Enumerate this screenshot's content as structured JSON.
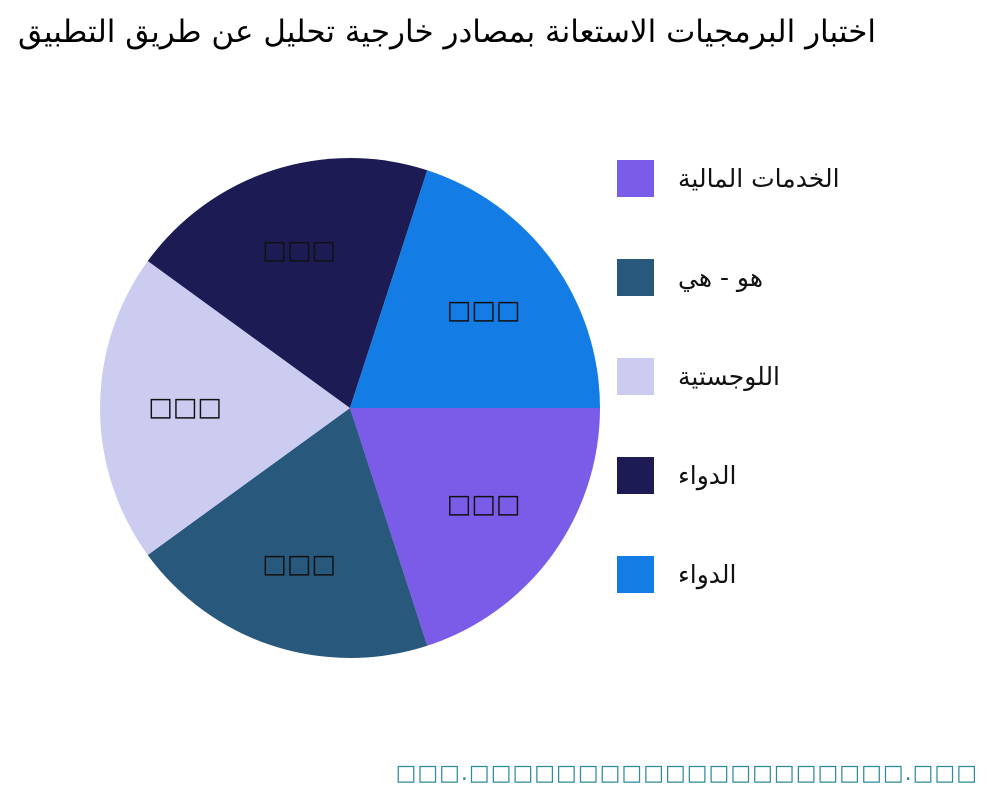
{
  "title": "اختبار البرمجيات الاستعانة بمصادر خارجية تحليل عن طريق التطبيق",
  "watermark_text": "□□□.□□□□□□□□□□□□□□□□□□□□.□□□",
  "chart_data": {
    "type": "pie",
    "title": "اختبار البرمجيات الاستعانة بمصادر خارجية تحليل عن طريق التطبيق",
    "labels": [
      "الخدمات المالية",
      "هو - هي",
      "اللوجستية",
      "الدواء",
      "الدواء"
    ],
    "values": [
      20,
      20,
      20,
      20,
      20
    ],
    "slice_value_labels": [
      "□□□",
      "□□□",
      "□□□",
      "□□□",
      "□□□"
    ],
    "colors": [
      "#7A5CE8",
      "#28587C",
      "#CCCCF0",
      "#1D1B53",
      "#147CE5"
    ],
    "start_angle_deg": 0,
    "direction": "clockwise",
    "legend_position": "right",
    "grid": false
  }
}
